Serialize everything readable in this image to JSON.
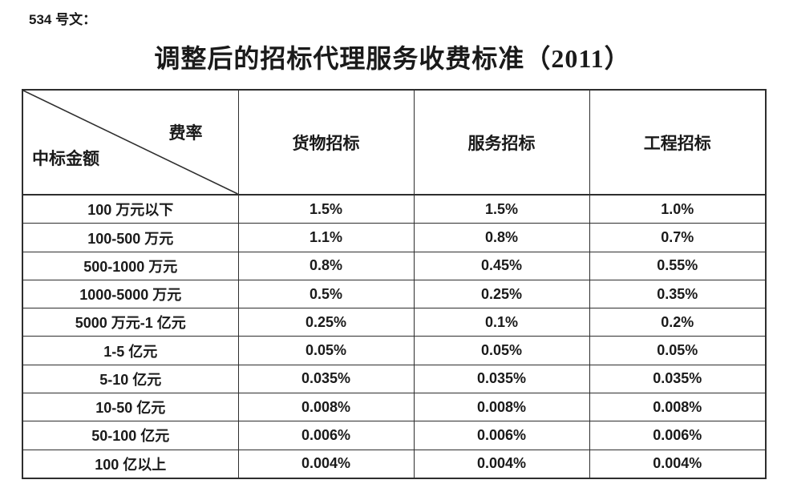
{
  "page": {
    "doc_number": "534 号文：",
    "title": "调整后的招标代理服务收费标准（2011）"
  },
  "table": {
    "corner": {
      "rate_label": "费率",
      "amount_label": "中标金额"
    },
    "columns": [
      "货物招标",
      "服务招标",
      "工程招标"
    ],
    "rows": [
      {
        "label": "100 万元以下",
        "values": [
          "1.5%",
          "1.5%",
          "1.0%"
        ]
      },
      {
        "label": "100-500 万元",
        "values": [
          "1.1%",
          "0.8%",
          "0.7%"
        ]
      },
      {
        "label": "500-1000 万元",
        "values": [
          "0.8%",
          "0.45%",
          "0.55%"
        ]
      },
      {
        "label": "1000-5000 万元",
        "values": [
          "0.5%",
          "0.25%",
          "0.35%"
        ]
      },
      {
        "label": "5000 万元-1 亿元",
        "values": [
          "0.25%",
          "0.1%",
          "0.2%"
        ]
      },
      {
        "label": "1-5 亿元",
        "values": [
          "0.05%",
          "0.05%",
          "0.05%"
        ]
      },
      {
        "label": "5-10 亿元",
        "values": [
          "0.035%",
          "0.035%",
          "0.035%"
        ]
      },
      {
        "label": "10-50 亿元",
        "values": [
          "0.008%",
          "0.008%",
          "0.008%"
        ]
      },
      {
        "label": "50-100 亿元",
        "values": [
          "0.006%",
          "0.006%",
          "0.006%"
        ]
      },
      {
        "label": "100 亿以上",
        "values": [
          "0.004%",
          "0.004%",
          "0.004%"
        ]
      }
    ]
  },
  "colors": {
    "text": "#1a1a1a",
    "border": "#2e2e2e",
    "background": "#ffffff"
  }
}
